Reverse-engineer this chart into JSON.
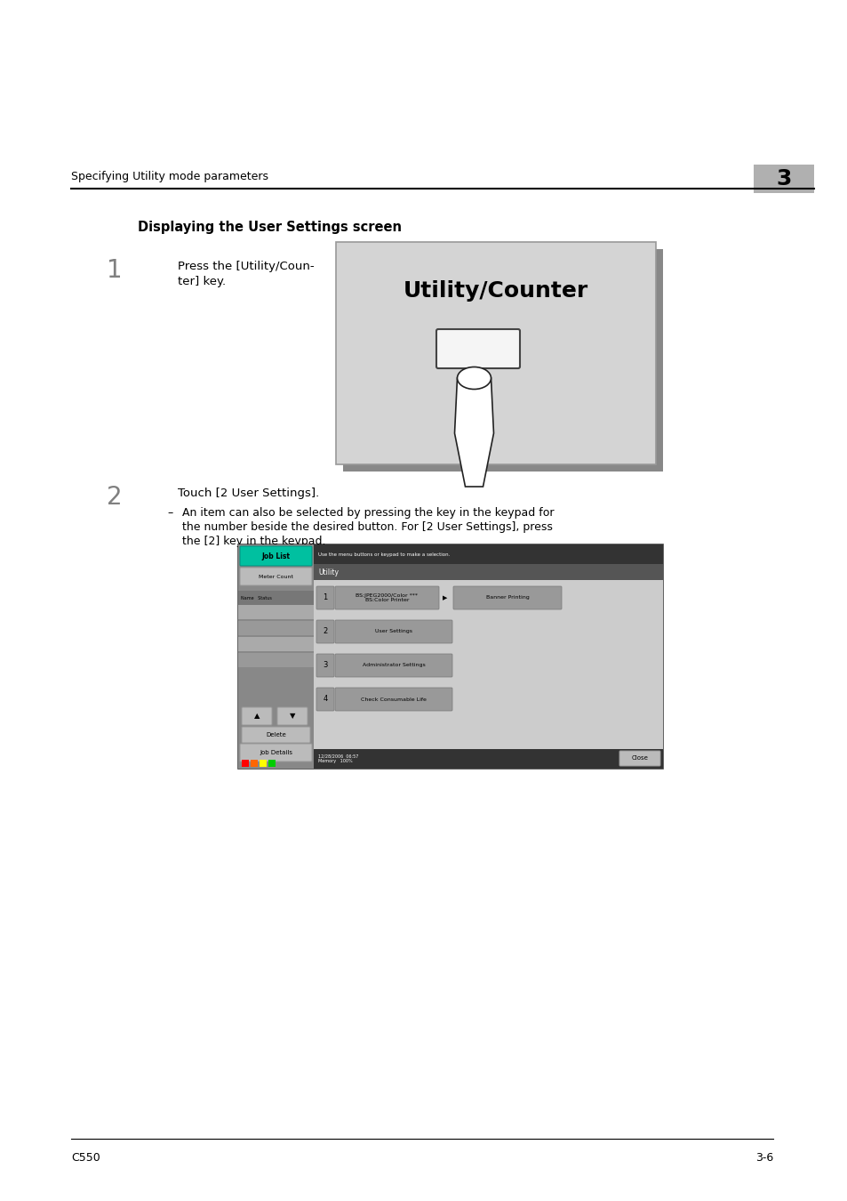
{
  "bg_color": "#ffffff",
  "header_text": "Specifying Utility mode parameters",
  "chapter_num": "3",
  "section_title": "Displaying the User Settings screen",
  "step1_text_line1": "Press the [Utility/Coun-",
  "step1_text_line2": "ter] key.",
  "step2_text": "Touch [2 User Settings].",
  "step2_sub_text_line1": "An item can also be selected by pressing the key in the keypad for",
  "step2_sub_text_line2": "the number beside the desired button. For [2 User Settings], press",
  "step2_sub_text_line3": "the [2] key in the keypad.",
  "footer_left": "C550",
  "footer_right": "3-6"
}
